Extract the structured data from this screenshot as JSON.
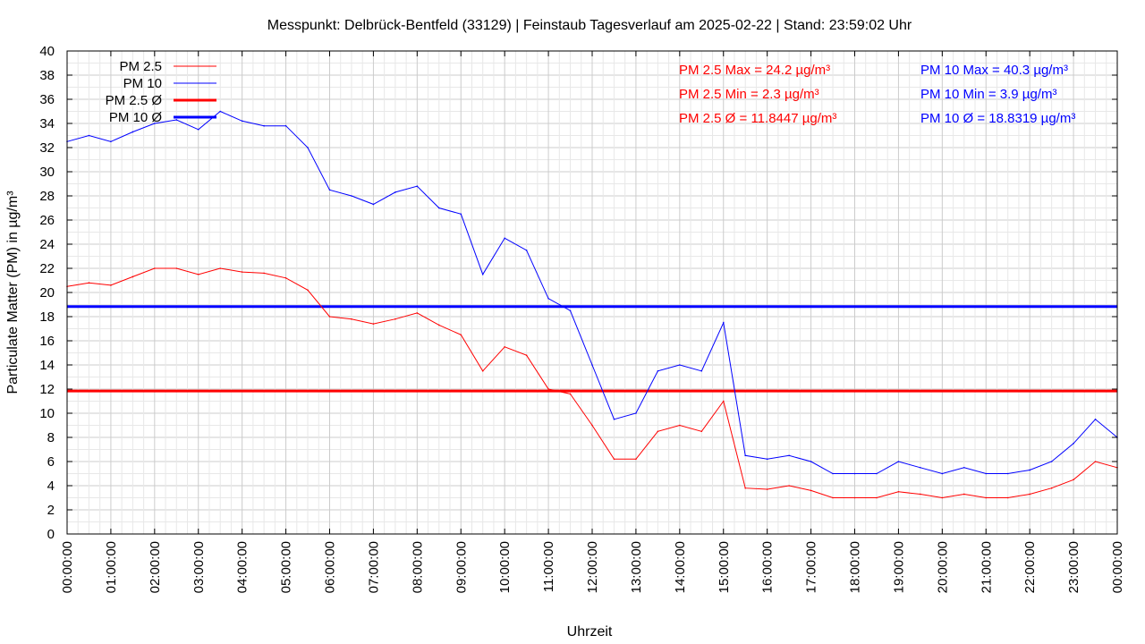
{
  "chart_data": {
    "type": "line",
    "title": "Messpunkt: Delbrück-Bentfeld (33129) | Feinstaub Tagesverlauf am 2025-02-22 | Stand: 23:59:02 Uhr",
    "xlabel": "Uhrzeit",
    "ylabel": "Particulate Matter (PM) in µg/m³",
    "ylim": [
      0,
      40
    ],
    "yticks": [
      0,
      2,
      4,
      6,
      8,
      10,
      12,
      14,
      16,
      18,
      20,
      22,
      24,
      26,
      28,
      30,
      32,
      34,
      36,
      38,
      40
    ],
    "xlim_hours": [
      0,
      24
    ],
    "xtick_labels": [
      "00:00:00",
      "01:00:00",
      "02:00:00",
      "03:00:00",
      "04:00:00",
      "05:00:00",
      "06:00:00",
      "07:00:00",
      "08:00:00",
      "09:00:00",
      "10:00:00",
      "11:00:00",
      "12:00:00",
      "13:00:00",
      "14:00:00",
      "15:00:00",
      "16:00:00",
      "17:00:00",
      "18:00:00",
      "19:00:00",
      "20:00:00",
      "21:00:00",
      "22:00:00",
      "23:00:00",
      "00:00:00"
    ],
    "grid": true,
    "legend_position": "top-left",
    "legend": [
      "PM 2.5",
      "PM 10",
      "PM 2.5 Ø",
      "PM 10 Ø"
    ],
    "x": [
      "00:00",
      "00:30",
      "01:00",
      "01:30",
      "02:00",
      "02:30",
      "03:00",
      "03:30",
      "04:00",
      "04:30",
      "05:00",
      "05:30",
      "06:00",
      "06:30",
      "07:00",
      "07:30",
      "08:00",
      "08:30",
      "09:00",
      "09:30",
      "10:00",
      "10:30",
      "11:00",
      "11:30",
      "12:00",
      "12:30",
      "13:00",
      "13:30",
      "14:00",
      "14:30",
      "15:00",
      "15:30",
      "16:00",
      "16:30",
      "17:00",
      "17:30",
      "18:00",
      "18:30",
      "19:00",
      "19:30",
      "20:00",
      "20:30",
      "21:00",
      "21:30",
      "22:00",
      "22:30",
      "23:00",
      "23:30",
      "24:00"
    ],
    "series": [
      {
        "name": "PM 2.5",
        "color": "#ff0000",
        "values": [
          20.5,
          20.8,
          20.6,
          21.3,
          22.0,
          22.0,
          21.5,
          22.0,
          21.7,
          21.6,
          21.2,
          20.2,
          18.0,
          17.8,
          17.4,
          17.8,
          18.3,
          17.3,
          16.5,
          13.5,
          15.5,
          14.8,
          12.0,
          11.6,
          9.0,
          6.2,
          6.2,
          8.5,
          9.0,
          8.5,
          11.0,
          3.8,
          3.7,
          4.0,
          3.6,
          3.0,
          3.0,
          3.0,
          3.5,
          3.3,
          3.0,
          3.3,
          3.0,
          3.0,
          3.3,
          3.8,
          4.5,
          6.0,
          5.5
        ]
      },
      {
        "name": "PM 10",
        "color": "#0000ff",
        "values": [
          32.5,
          33.0,
          32.5,
          33.3,
          34.0,
          34.3,
          33.5,
          35.0,
          34.2,
          33.8,
          33.8,
          32.0,
          28.5,
          28.0,
          27.3,
          28.3,
          28.8,
          27.0,
          26.5,
          21.5,
          24.5,
          23.5,
          19.5,
          18.5,
          14.0,
          9.5,
          10.0,
          13.5,
          14.0,
          13.5,
          17.5,
          6.5,
          6.2,
          6.5,
          6.0,
          5.0,
          5.0,
          5.0,
          6.0,
          5.5,
          5.0,
          5.5,
          5.0,
          5.0,
          5.3,
          6.0,
          7.5,
          9.5,
          8.0
        ]
      }
    ],
    "averages": [
      {
        "name": "PM 2.5 Ø",
        "value": 11.8447,
        "color": "#ff0000"
      },
      {
        "name": "PM 10 Ø",
        "value": 18.8319,
        "color": "#0000ff"
      }
    ],
    "stats": [
      {
        "label": "PM 2.5 Max = 24.2 µg/m³",
        "color": "#ff0000"
      },
      {
        "label": "PM 2.5 Min = 2.3 µg/m³",
        "color": "#ff0000"
      },
      {
        "label": "PM 2.5 Ø = 11.8447 µg/m³",
        "color": "#ff0000"
      },
      {
        "label": "PM 10 Max = 40.3 µg/m³",
        "color": "#0000ff"
      },
      {
        "label": "PM 10 Min = 3.9 µg/m³",
        "color": "#0000ff"
      },
      {
        "label": "PM 10 Ø = 18.8319 µg/m³",
        "color": "#0000ff"
      }
    ]
  }
}
